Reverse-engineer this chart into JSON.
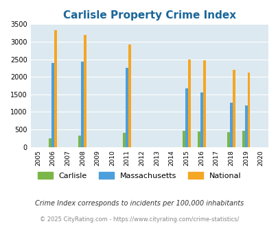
{
  "title": "Carlisle Property Crime Index",
  "years": [
    2005,
    2006,
    2007,
    2008,
    2009,
    2010,
    2011,
    2012,
    2013,
    2014,
    2015,
    2016,
    2017,
    2018,
    2019,
    2020
  ],
  "carlisle": {
    "2006": 250,
    "2008": 330,
    "2011": 400,
    "2015": 470,
    "2016": 450,
    "2018": 430,
    "2019": 455
  },
  "massachusetts": {
    "2006": 2400,
    "2008": 2430,
    "2011": 2260,
    "2015": 1670,
    "2016": 1560,
    "2018": 1270,
    "2019": 1180
  },
  "national": {
    "2006": 3330,
    "2008": 3200,
    "2011": 2920,
    "2015": 2500,
    "2016": 2480,
    "2018": 2200,
    "2019": 2120
  },
  "carlisle_color": "#7ab648",
  "massachusetts_color": "#4d9fdc",
  "national_color": "#f5a623",
  "bg_color": "#dce9f0",
  "ylim": [
    0,
    3500
  ],
  "yticks": [
    0,
    500,
    1000,
    1500,
    2000,
    2500,
    3000,
    3500
  ],
  "bar_width": 0.55,
  "subtitle": "Crime Index corresponds to incidents per 100,000 inhabitants",
  "footer": "© 2025 CityRating.com - https://www.cityrating.com/crime-statistics/",
  "legend_labels": [
    "Carlisle",
    "Massachusetts",
    "National"
  ],
  "title_color": "#1a6699",
  "footer_color": "#888888",
  "subtitle_color": "#333333"
}
